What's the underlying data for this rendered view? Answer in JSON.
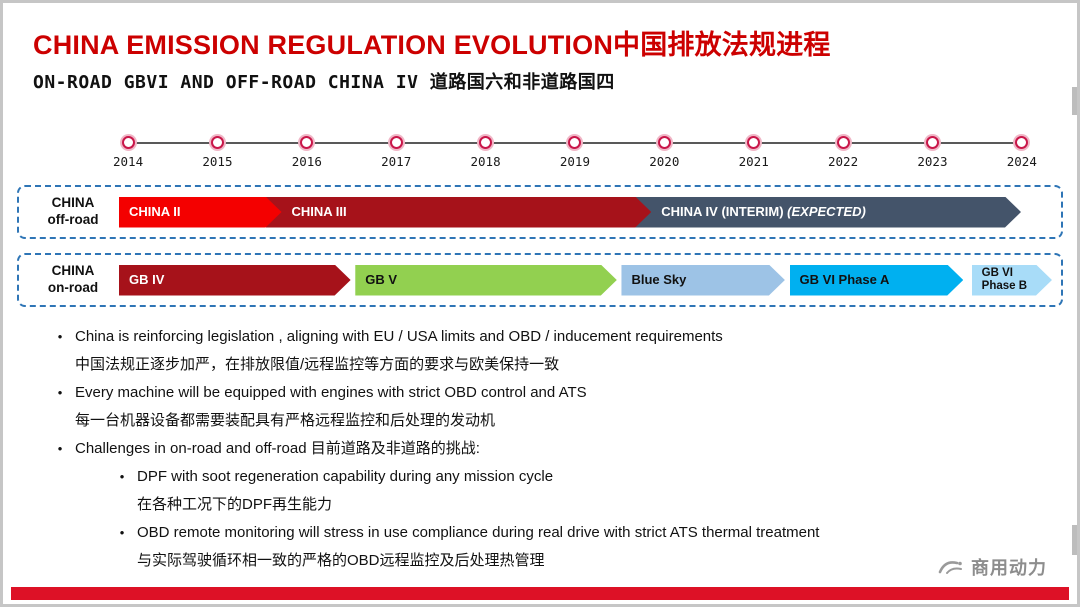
{
  "title": "CHINA EMISSION REGULATION EVOLUTION中国排放法规进程",
  "subtitle": "ON-ROAD GBVI AND OFF-ROAD CHINA IV 道路国六和非道路国四",
  "colors": {
    "title_red": "#CC0000",
    "bottom_bar_red": "#DD1126",
    "track_border_blue": "#2E75B6",
    "timeline_marker_red": "#C9174A"
  },
  "timeline": {
    "years": [
      "2014",
      "2015",
      "2016",
      "2017",
      "2018",
      "2019",
      "2020",
      "2021",
      "2022",
      "2023",
      "2024"
    ]
  },
  "tracks": [
    {
      "label_lines": [
        "CHINA",
        "off-road"
      ],
      "segments": [
        {
          "label_lines": [
            "CHINA II"
          ],
          "color": "#F40000",
          "text_color": "#FFFFFF",
          "width_pct": 17.4,
          "gap_pct": 0
        },
        {
          "label_lines": [
            "CHINA III"
          ],
          "color": "#A6121A",
          "text_color": "#FFFFFF",
          "width_pct": 41.3,
          "gap_pct": 0
        },
        {
          "label_lines": [
            "CHINA IV (INTERIM)"
          ],
          "italic_suffix": "(EXPECTED)",
          "color": "#44546A",
          "text_color": "#FFFFFF",
          "width_pct": 41.3,
          "gap_pct": 0
        }
      ]
    },
    {
      "label_lines": [
        "CHINA",
        "on-road"
      ],
      "segments": [
        {
          "label_lines": [
            "GB IV"
          ],
          "color": "#A6121A",
          "text_color": "#FFFFFF",
          "width_pct": 24.8,
          "gap_pct": 0.5
        },
        {
          "label_lines": [
            "GB V"
          ],
          "color": "#92D050",
          "text_color": "#111111",
          "width_pct": 28.0,
          "gap_pct": 0.5
        },
        {
          "label_lines": [
            "Blue Sky"
          ],
          "color": "#9DC3E6",
          "text_color": "#111111",
          "width_pct": 17.5,
          "gap_pct": 0.5
        },
        {
          "label_lines": [
            "GB VI Phase A"
          ],
          "color": "#00B0F0",
          "text_color": "#111111",
          "width_pct": 18.6,
          "gap_pct": 0.9
        },
        {
          "label_lines": [
            "GB VI",
            "Phase B"
          ],
          "color": "#A8DCF8",
          "text_color": "#111111",
          "width_pct": 8.6,
          "gap_pct": 0,
          "small": true
        }
      ]
    }
  ],
  "bullets": [
    {
      "level": 1,
      "bullet": true,
      "text": "China is reinforcing legislation , aligning with EU / USA limits and OBD / inducement requirements"
    },
    {
      "level": 1,
      "bullet": false,
      "text": "中国法规正逐步加严，在排放限值/远程监控等方面的要求与欧美保持一致"
    },
    {
      "level": 1,
      "bullet": true,
      "text": "Every machine will be equipped with engines with strict OBD control and ATS"
    },
    {
      "level": 1,
      "bullet": false,
      "text": "每一台机器设备都需要装配具有严格远程监控和后处理的发动机"
    },
    {
      "level": 1,
      "bullet": true,
      "text": "Challenges in on-road and off-road 目前道路及非道路的挑战:"
    },
    {
      "level": 2,
      "bullet": true,
      "text": "DPF with soot regeneration capability during any mission cycle"
    },
    {
      "level": 2,
      "bullet": false,
      "text": "在各种工况下的DPF再生能力"
    },
    {
      "level": 2,
      "bullet": true,
      "text": "OBD remote monitoring  will stress in use compliance during real drive  with strict ATS thermal treatment"
    },
    {
      "level": 2,
      "bullet": false,
      "text": "与实际驾驶循环相一致的严格的OBD远程监控及后处理热管理"
    }
  ],
  "footer": {
    "logo_text": "商用动力"
  }
}
